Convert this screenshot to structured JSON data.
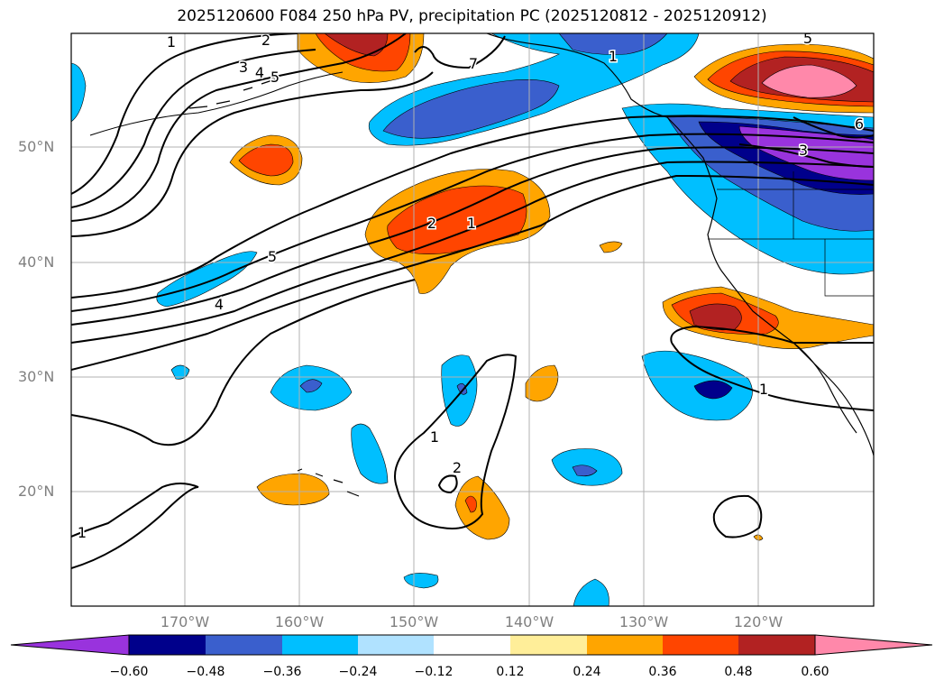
{
  "title": "2025120600 F084 250 hPa PV, precipitation PC (2025120812 - 2025120912)",
  "latitude_labels": [
    "50°N",
    "40°N",
    "30°N",
    "20°N"
  ],
  "longitude_labels": [
    "170°W",
    "160°W",
    "150°W",
    "140°W",
    "130°W",
    "120°W"
  ],
  "contour_labels": [
    "1",
    "2",
    "3",
    "4",
    "5",
    "7",
    "1",
    "3",
    "5",
    "6",
    "2",
    "1",
    "4",
    "5",
    "1",
    "2",
    "1",
    "1"
  ],
  "colorbar": {
    "ticks": [
      "−0.60",
      "−0.48",
      "−0.36",
      "−0.24",
      "−0.12",
      "0.12",
      "0.24",
      "0.36",
      "0.48",
      "0.60"
    ],
    "colors": [
      "#9933dd",
      "#00008b",
      "#3a5fcd",
      "#00bfff",
      "#b0e2ff",
      "#ffffff",
      "#ffee99",
      "#ffa500",
      "#ff4500",
      "#b22222",
      "#ff88aa"
    ]
  },
  "palette": {
    "coast": "#000000",
    "contour": "#000000",
    "grid": "#b0b0b0",
    "neg1": "#00bfff",
    "neg2": "#3a5fcd",
    "neg3": "#00008b",
    "neg4": "#9933dd",
    "pos1": "#ffa500",
    "pos2": "#ff4500",
    "pos3": "#b22222",
    "pos4": "#ff88aa"
  }
}
